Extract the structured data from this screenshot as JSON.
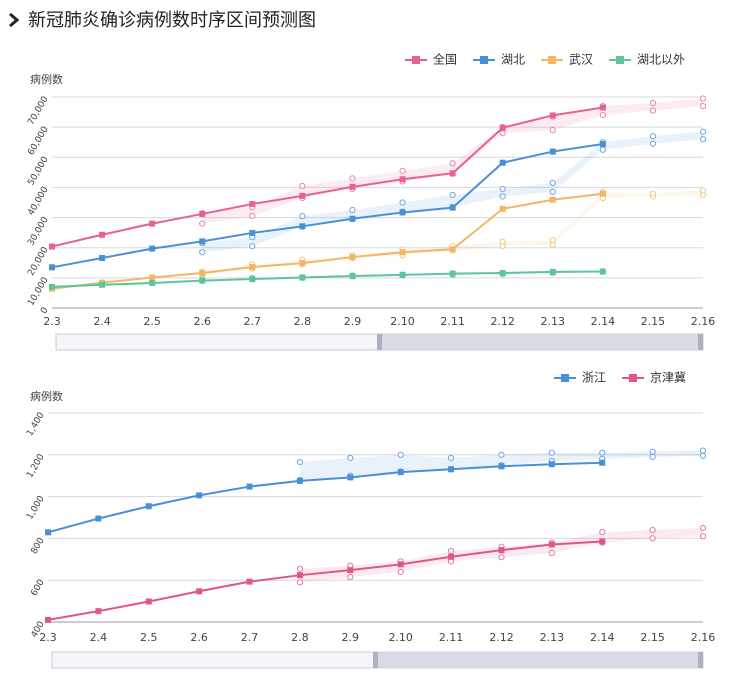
{
  "title": "新冠肺炎确诊病例数时序区间预测图",
  "chart_data": [
    {
      "type": "line",
      "y_label": "病例数",
      "legend": "top-right",
      "grid": true,
      "categories": [
        "2.3",
        "2.4",
        "2.5",
        "2.6",
        "2.7",
        "2.8",
        "2.9",
        "2.10",
        "2.11",
        "2.12",
        "2.13",
        "2.14",
        "2.15",
        "2.16"
      ],
      "ylim": [
        0,
        70000
      ],
      "yticks": [
        0,
        {
          "value": 10000,
          "label": "10,000"
        },
        {
          "value": 20000,
          "label": "20,000"
        },
        {
          "value": 30000,
          "label": "30,000"
        },
        {
          "value": 40000,
          "label": "40,000"
        },
        {
          "value": 50000,
          "label": "50,000"
        },
        {
          "value": 60000,
          "label": "60,000"
        },
        {
          "value": 70000,
          "label": "70,000"
        }
      ],
      "series": [
        {
          "name": "全国",
          "color": "#e8638c",
          "values": [
            20400,
            24300,
            28000,
            31200,
            34500,
            37200,
            40200,
            42700,
            44700,
            59800,
            63900,
            66500,
            null,
            null
          ],
          "interval_lower": [
            null,
            null,
            null,
            28000,
            30500,
            36500,
            39500,
            42000,
            44500,
            58000,
            59000,
            64000,
            65500,
            67000
          ],
          "interval_upper": [
            null,
            null,
            null,
            31500,
            33500,
            40500,
            43000,
            45500,
            48000,
            60000,
            63500,
            67000,
            68000,
            69500
          ]
        },
        {
          "name": "湖北",
          "color": "#4a90d9",
          "values": [
            13500,
            16600,
            19700,
            22100,
            24900,
            27100,
            29600,
            31700,
            33300,
            48200,
            51900,
            54400,
            null,
            null
          ],
          "interval_lower": [
            null,
            null,
            null,
            18500,
            20500,
            27000,
            29500,
            32000,
            33500,
            37000,
            38500,
            52500,
            54500,
            56000
          ],
          "interval_upper": [
            null,
            null,
            null,
            21500,
            23500,
            30500,
            32500,
            35000,
            37500,
            39500,
            41500,
            55000,
            57000,
            58500
          ]
        },
        {
          "name": "武汉",
          "color": "#f2b765",
          "values": [
            6400,
            8400,
            10100,
            11600,
            13600,
            14900,
            16900,
            18500,
            19500,
            32900,
            35900,
            37900,
            null,
            null
          ],
          "interval_lower": [
            null,
            null,
            null,
            11000,
            13000,
            14500,
            16500,
            17500,
            19000,
            20500,
            21000,
            36500,
            37000,
            37500
          ],
          "interval_upper": [
            null,
            null,
            null,
            12000,
            14500,
            16000,
            17500,
            19500,
            20500,
            22000,
            22500,
            38500,
            38000,
            39000
          ]
        },
        {
          "name": "湖北以外",
          "color": "#5ec49a",
          "values": [
            7000,
            7700,
            8300,
            9100,
            9600,
            10100,
            10600,
            11000,
            11400,
            11600,
            12000,
            12100,
            null,
            null
          ],
          "interval_lower": [
            null,
            null,
            null,
            9000,
            9500,
            10000,
            10500,
            10800,
            11000,
            11200,
            11500,
            12000,
            null,
            null
          ],
          "interval_upper": [
            null,
            null,
            null,
            9500,
            10000,
            10200,
            10800,
            11100,
            11500,
            11600,
            12000,
            12200,
            null,
            null
          ]
        }
      ]
    },
    {
      "type": "line",
      "y_label": "病例数",
      "legend": "top-right",
      "grid": true,
      "categories": [
        "2.3",
        "2.4",
        "2.5",
        "2.6",
        "2.7",
        "2.8",
        "2.9",
        "2.10",
        "2.11",
        "2.12",
        "2.13",
        "2.14",
        "2.15",
        "2.16"
      ],
      "ylim": [
        400,
        1400
      ],
      "yticks": [
        400,
        600,
        800,
        {
          "value": 1000,
          "label": "1,000"
        },
        {
          "value": 1200,
          "label": "1,200"
        },
        {
          "value": 1400,
          "label": "1,400"
        }
      ],
      "series": [
        {
          "name": "浙江",
          "color": "#4a90d9",
          "values": [
            829,
            895,
            954,
            1006,
            1048,
            1075,
            1092,
            1117,
            1131,
            1145,
            1155,
            1162,
            null,
            null
          ],
          "interval_lower": [
            null,
            null,
            null,
            null,
            null,
            1080,
            1100,
            1120,
            1130,
            1150,
            1170,
            1180,
            1190,
            1195
          ],
          "interval_upper": [
            null,
            null,
            null,
            null,
            null,
            1165,
            1185,
            1200,
            1185,
            1200,
            1210,
            1210,
            1215,
            1220
          ]
        },
        {
          "name": "京津冀",
          "color": "#e0558a",
          "values": [
            410,
            452,
            498,
            547,
            593,
            624,
            648,
            676,
            712,
            744,
            771,
            785,
            null,
            null
          ],
          "interval_lower": [
            null,
            null,
            null,
            null,
            null,
            590,
            615,
            640,
            690,
            710,
            730,
            780,
            800,
            810
          ],
          "interval_upper": [
            null,
            null,
            null,
            null,
            null,
            655,
            670,
            690,
            740,
            760,
            780,
            830,
            840,
            850
          ]
        }
      ]
    }
  ]
}
